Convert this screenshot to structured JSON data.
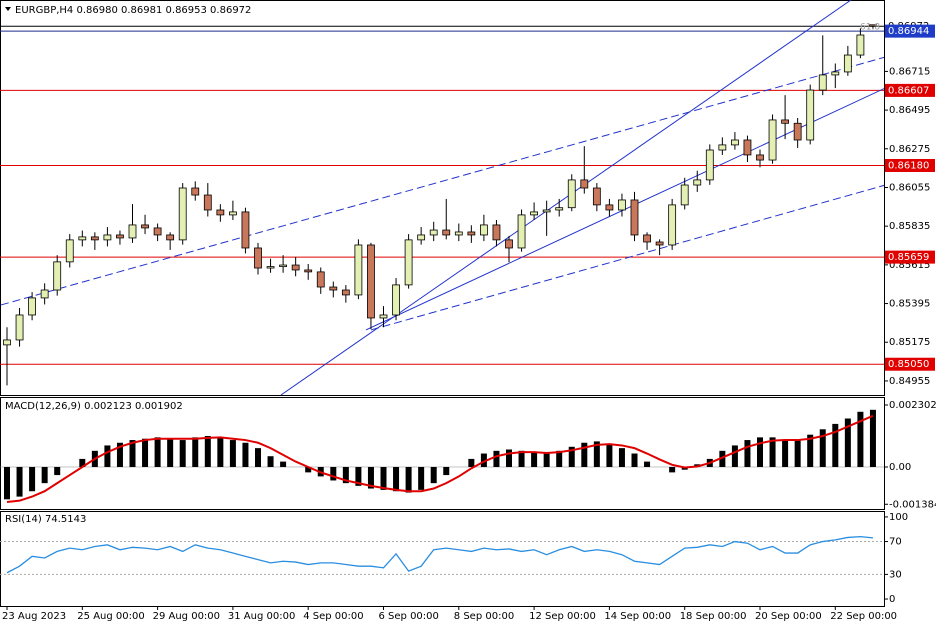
{
  "chart_data": [
    {
      "type": "candlestick",
      "header": "EURGBP,H4  0.86980 0.86981 0.86953 0.86972",
      "annotation": "61.8",
      "categories": [
        "23 Aug 2023",
        null,
        null,
        null,
        null,
        null,
        "25 Aug 00:00",
        null,
        null,
        null,
        null,
        null,
        "29 Aug 00:00",
        null,
        null,
        null,
        null,
        null,
        "31 Aug 00:00",
        null,
        null,
        null,
        null,
        null,
        "4 Sep 00:00",
        null,
        null,
        null,
        null,
        null,
        "6 Sep 00:00",
        null,
        null,
        null,
        null,
        null,
        "8 Sep 00:00",
        null,
        null,
        null,
        null,
        null,
        "12 Sep 00:00",
        null,
        null,
        null,
        null,
        null,
        "14 Sep 00:00",
        null,
        null,
        null,
        null,
        null,
        "18 Sep 00:00",
        null,
        null,
        null,
        null,
        null,
        "20 Sep 00:00",
        null,
        null,
        null,
        null,
        null,
        "22 Sep 00:00",
        null,
        null,
        null
      ],
      "open": [
        0.8516,
        0.85188,
        0.8533,
        0.85427,
        0.85472,
        0.85632,
        0.85757,
        0.85774,
        0.85757,
        0.85785,
        0.85768,
        0.85842,
        0.85825,
        0.85785,
        0.85757,
        0.86052,
        0.86012,
        0.85927,
        0.85899,
        0.85916,
        0.85711,
        0.85597,
        0.85605,
        0.85614,
        0.85586,
        0.85575,
        0.85489,
        0.85472,
        0.85444,
        0.85728,
        0.85313,
        0.8533,
        0.85501,
        0.85757,
        0.85785,
        0.85813,
        0.85785,
        0.85802,
        0.85785,
        0.85842,
        0.85757,
        0.85711,
        0.85899,
        0.85916,
        0.85927,
        0.8594,
        0.86098,
        0.86052,
        0.85956,
        0.85927,
        0.85984,
        0.85785,
        0.85745,
        0.85728,
        0.85956,
        0.86069,
        0.86098,
        0.86268,
        0.86297,
        0.86325,
        0.8624,
        0.86211,
        0.86439,
        0.8642,
        0.86325,
        0.86609,
        0.86695,
        0.86712,
        0.86808,
        0.8698
      ],
      "high": [
        0.8526,
        0.8537,
        0.8546,
        0.8551,
        0.8567,
        0.8579,
        0.8581,
        0.858,
        0.8583,
        0.8581,
        0.8596,
        0.859,
        0.8585,
        0.858,
        0.8608,
        0.8609,
        0.8608,
        0.8596,
        0.8598,
        0.8594,
        0.8574,
        0.8565,
        0.8567,
        0.8566,
        0.8562,
        0.856,
        0.8552,
        0.855,
        0.8576,
        0.8574,
        0.8538,
        0.8554,
        0.8579,
        0.8583,
        0.8586,
        0.8599,
        0.8585,
        0.8584,
        0.859,
        0.8587,
        0.8578,
        0.8593,
        0.8597,
        0.8598,
        0.8599,
        0.8613,
        0.8629,
        0.8608,
        0.8599,
        0.8602,
        0.8603,
        0.858,
        0.8576,
        0.8599,
        0.8611,
        0.8615,
        0.863,
        0.8634,
        0.8637,
        0.8635,
        0.8627,
        0.8647,
        0.8658,
        0.8645,
        0.8664,
        0.8692,
        0.8676,
        0.8686,
        0.8696,
        0.86981
      ],
      "low": [
        0.8493,
        0.8515,
        0.853,
        0.8539,
        0.8544,
        0.856,
        0.8572,
        0.857,
        0.8572,
        0.8573,
        0.8574,
        0.8579,
        0.8575,
        0.857,
        0.8573,
        0.8598,
        0.8589,
        0.8586,
        0.8587,
        0.8568,
        0.8556,
        0.8557,
        0.8557,
        0.8555,
        0.8553,
        0.8545,
        0.8543,
        0.854,
        0.8542,
        0.8525,
        0.8526,
        0.853,
        0.8548,
        0.8573,
        0.8575,
        0.8576,
        0.8575,
        0.8574,
        0.8575,
        0.8572,
        0.8563,
        0.8569,
        0.8587,
        0.8578,
        0.8589,
        0.8592,
        0.8602,
        0.8592,
        0.8589,
        0.8589,
        0.8575,
        0.857,
        0.8567,
        0.857,
        0.8593,
        0.8603,
        0.8607,
        0.8624,
        0.8627,
        0.862,
        0.8617,
        0.8619,
        0.8633,
        0.8628,
        0.863,
        0.8658,
        0.8662,
        0.8669,
        0.8679,
        0.86953
      ],
      "close": [
        0.85188,
        0.8533,
        0.85427,
        0.85472,
        0.85632,
        0.85757,
        0.85774,
        0.85757,
        0.85785,
        0.85768,
        0.85842,
        0.85825,
        0.85785,
        0.85757,
        0.86052,
        0.86012,
        0.85927,
        0.85899,
        0.85916,
        0.85711,
        0.85597,
        0.85605,
        0.85614,
        0.85586,
        0.85575,
        0.85489,
        0.85472,
        0.85444,
        0.85728,
        0.85313,
        0.8533,
        0.85501,
        0.85757,
        0.85785,
        0.85813,
        0.85785,
        0.85802,
        0.85785,
        0.85842,
        0.85757,
        0.85711,
        0.85899,
        0.85916,
        0.85927,
        0.8594,
        0.86098,
        0.86052,
        0.85956,
        0.85927,
        0.85984,
        0.85785,
        0.85745,
        0.85728,
        0.85956,
        0.86069,
        0.86098,
        0.86268,
        0.86297,
        0.86325,
        0.8624,
        0.86211,
        0.86439,
        0.8642,
        0.86325,
        0.86609,
        0.86695,
        0.86712,
        0.86808,
        0.86922,
        0.86972
      ],
      "up_color": "#e4efb4",
      "down_color": "#c8775a",
      "ylim": [
        0.84875,
        0.87121
      ],
      "yticks": [
        0.86715,
        0.86495,
        0.86275,
        0.86055,
        0.85835,
        0.85615,
        0.85395,
        0.85175,
        0.84955
      ],
      "levels": [
        {
          "value": 0.86972,
          "label": "0.86972",
          "color": "#000000",
          "label_color": "#ffffff",
          "text_color": "#000000"
        },
        {
          "value": 0.86944,
          "label": "0.86944",
          "color": "#1f2f8f",
          "label_color": "#1e3cc8",
          "text_color": "#ffffff"
        },
        {
          "value": 0.86607,
          "label": "0.86607",
          "color": "#e00000",
          "label_color": "#e00000",
          "text_color": "#ffffff"
        },
        {
          "value": 0.8618,
          "label": "0.86180",
          "color": "#e00000",
          "label_color": "#e00000",
          "text_color": "#ffffff"
        },
        {
          "value": 0.85659,
          "label": "0.85659",
          "color": "#e00000",
          "label_color": "#e00000",
          "text_color": "#ffffff"
        },
        {
          "value": 0.8505,
          "label": "0.85050",
          "color": "#e00000",
          "label_color": "#e00000",
          "text_color": "#ffffff"
        }
      ],
      "trendlines": [
        {
          "style": "solid",
          "color": "#2233cc",
          "x": [
            21.83,
            67.25
          ],
          "y": [
            0.84875,
            0.87121
          ]
        },
        {
          "style": "solid",
          "color": "#2233cc",
          "x": [
            28.6,
            70.0
          ],
          "y": [
            0.85245,
            0.86621
          ]
        },
        {
          "style": "dashed",
          "color": "#2233cc",
          "x": [
            -0.48,
            70.0
          ],
          "y": [
            0.85387,
            0.86797
          ]
        },
        {
          "style": "dashed",
          "color": "#2233cc",
          "x": [
            29.0,
            70.0
          ],
          "y": [
            0.85245,
            0.86069
          ]
        }
      ]
    },
    {
      "type": "macd",
      "title": "MACD(12,26,9) 0.002123 0.001902",
      "series": [
        {
          "kind": "bar",
          "color": "#000000",
          "values": [
            -0.0012,
            -0.0011,
            -0.0009,
            -0.0006,
            -0.0003,
            0.0,
            0.0003,
            0.0006,
            0.0008,
            0.0009,
            0.001,
            0.00105,
            0.0011,
            0.00105,
            0.001,
            0.0011,
            0.00115,
            0.0011,
            0.001,
            0.0009,
            0.0007,
            0.0004,
            0.0002,
            0.0,
            -0.0002,
            -0.00035,
            -0.0005,
            -0.0006,
            -0.0007,
            -0.0008,
            -0.00085,
            -0.0009,
            -0.00095,
            -0.00085,
            -0.0006,
            -0.0003,
            0.0,
            0.0003,
            0.0005,
            0.0006,
            0.00065,
            0.0006,
            0.00055,
            0.0005,
            0.0006,
            0.00075,
            0.0009,
            0.00095,
            0.00085,
            0.0007,
            0.0005,
            0.0002,
            0.0,
            -0.0002,
            -0.0001,
            0.0001,
            0.0003,
            0.0006,
            0.0008,
            0.001,
            0.0011,
            0.0011,
            0.001,
            0.001,
            0.0012,
            0.0014,
            0.0016,
            0.0018,
            0.00205,
            0.002123
          ]
        },
        {
          "kind": "line",
          "color": "#e00000",
          "values": [
            -0.0013,
            -0.00125,
            -0.0011,
            -0.0009,
            -0.0006,
            -0.0003,
            0.0,
            0.0003,
            0.00055,
            0.00075,
            0.0009,
            0.001,
            0.00105,
            0.00105,
            0.00105,
            0.00105,
            0.00108,
            0.0011,
            0.00105,
            0.001,
            0.0009,
            0.0007,
            0.00045,
            0.0002,
            0.0,
            -0.0002,
            -0.00035,
            -0.0005,
            -0.0006,
            -0.0007,
            -0.00078,
            -0.00085,
            -0.0009,
            -0.0009,
            -0.0008,
            -0.0006,
            -0.00035,
            -5e-05,
            0.0002,
            0.0004,
            0.0005,
            0.00055,
            0.00055,
            0.00052,
            0.00055,
            0.00062,
            0.00072,
            0.00082,
            0.00085,
            0.0008,
            0.0007,
            0.0005,
            0.00028,
            8e-05,
            -2e-05,
            2e-05,
            0.00015,
            0.00035,
            0.00055,
            0.00075,
            0.00088,
            0.00098,
            0.001,
            0.001,
            0.00105,
            0.00115,
            0.0013,
            0.0015,
            0.0017,
            0.001902
          ]
        }
      ],
      "ylim": [
        -0.001597,
        0.002599
      ],
      "yticks": [
        0.002302,
        {
          "value": 0,
          "label": "0.00"
        },
        -0.001384
      ]
    },
    {
      "type": "line",
      "title": "RSI(14) 74.5143",
      "color": "#2a8ee0",
      "values": [
        32,
        40,
        52,
        50,
        58,
        62,
        60,
        64,
        66,
        60,
        63,
        62,
        60,
        64,
        58,
        66,
        62,
        60,
        56,
        52,
        48,
        44,
        46,
        45,
        42,
        44,
        44,
        42,
        40,
        40,
        38,
        55,
        34,
        40,
        60,
        62,
        60,
        58,
        62,
        60,
        61,
        58,
        60,
        54,
        60,
        64,
        58,
        60,
        58,
        54,
        46,
        44,
        42,
        52,
        62,
        63,
        66,
        64,
        70,
        68,
        60,
        64,
        56,
        56,
        66,
        70,
        72,
        75,
        76,
        74.5143
      ],
      "ylim": [
        -8.5,
        106
      ],
      "yticks": [
        100,
        70,
        30,
        0
      ],
      "levels": [
        70,
        30
      ]
    }
  ]
}
